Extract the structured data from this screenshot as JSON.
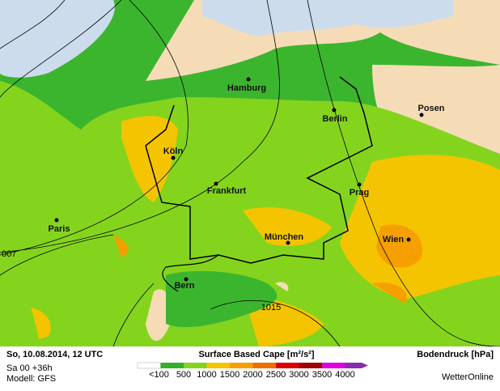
{
  "map": {
    "cities": [
      "Hamburg",
      "Berlin",
      "Posen",
      "Köln",
      "Frankfurt",
      "Prag",
      "Paris",
      "München",
      "Wien",
      "Bern"
    ],
    "isobar_labels": [
      "1015",
      "007"
    ]
  },
  "footer": {
    "date": "So, 10.08.2014, 12 UTC",
    "run": "Sa 00 +36h",
    "model": "Modell: GFS",
    "legend_title": "Surface Based Cape [m²/s²]",
    "pressure_title": "Bodendruck [hPa]",
    "brand": "WetterOnline",
    "legend_labels": [
      "<100",
      "500",
      "1000",
      "1500",
      "2000",
      "2500",
      "3000",
      "3500",
      "4000"
    ],
    "legend_colors": [
      "#ffffff",
      "#33b02a",
      "#84d41e",
      "#f5c400",
      "#f5a000",
      "#ee6e00",
      "#dd0000",
      "#a00000",
      "#e000e0",
      "#8a2ab0"
    ]
  }
}
